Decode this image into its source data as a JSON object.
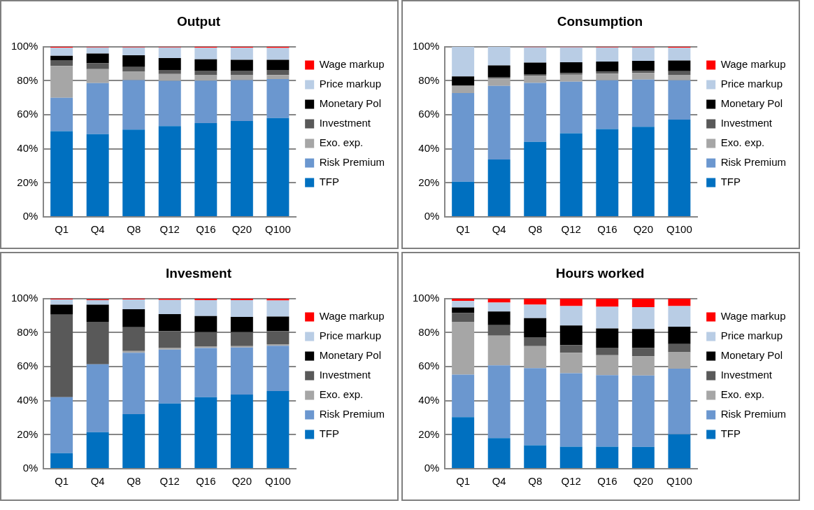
{
  "chart_data": [
    {
      "type": "bar",
      "title": "Output",
      "categories": [
        "Q1",
        "Q4",
        "Q8",
        "Q12",
        "Q16",
        "Q20",
        "Q100"
      ],
      "stacked": true,
      "ylim": [
        0,
        100
      ],
      "yticks": [
        {
          "value": 0,
          "label": "0%"
        },
        {
          "value": 20,
          "label": "20%"
        },
        {
          "value": 40,
          "label": "40%"
        },
        {
          "value": 60,
          "label": "60%"
        },
        {
          "value": 80,
          "label": "80%"
        },
        {
          "value": 100,
          "label": "100%"
        }
      ],
      "grid": "y",
      "legend": "right",
      "series": [
        {
          "name": "TFP",
          "color": "#0070c0",
          "values": [
            50.4,
            48.6,
            51.3,
            53.4,
            55.1,
            56.3,
            58.1
          ]
        },
        {
          "name": "Risk Premium",
          "color": "#6b97cf",
          "values": [
            19.6,
            30,
            29.1,
            26.6,
            25,
            24.1,
            22.9
          ]
        },
        {
          "name": "Exo. exp.",
          "color": "#a6a6a6",
          "values": [
            18.7,
            8.3,
            4.9,
            4,
            3.2,
            2.9,
            2.4
          ]
        },
        {
          "name": "Investment",
          "color": "#595959",
          "values": [
            3.4,
            3.5,
            2.8,
            2.3,
            2.6,
            2.6,
            2.9
          ]
        },
        {
          "name": "Monetary Pol",
          "color": "#000000",
          "values": [
            2.6,
            5.6,
            6.9,
            7,
            6.7,
            6.4,
            6
          ]
        },
        {
          "name": "Price markup",
          "color": "#b9cde5",
          "values": [
            4.7,
            3.6,
            4.6,
            6.3,
            6.8,
            7.1,
            7
          ]
        },
        {
          "name": "Wage markup",
          "color": "#ff0000",
          "values": [
            0.6,
            0.4,
            0.4,
            0.4,
            0.6,
            0.6,
            0.7
          ]
        }
      ]
    },
    {
      "type": "bar",
      "title": "Consumption",
      "categories": [
        "Q1",
        "Q4",
        "Q8",
        "Q12",
        "Q16",
        "Q20",
        "Q100"
      ],
      "stacked": true,
      "ylim": [
        0,
        100
      ],
      "yticks": [
        {
          "value": 0,
          "label": "0%"
        },
        {
          "value": 20,
          "label": "20%"
        },
        {
          "value": 40,
          "label": "40%"
        },
        {
          "value": 60,
          "label": "60%"
        },
        {
          "value": 80,
          "label": "80%"
        },
        {
          "value": 100,
          "label": "100%"
        }
      ],
      "grid": "y",
      "legend": "right",
      "series": [
        {
          "name": "TFP",
          "color": "#0070c0",
          "values": [
            20.7,
            33.7,
            44.1,
            49.1,
            51.6,
            52.9,
            57.2
          ]
        },
        {
          "name": "Risk Premium",
          "color": "#6b97cf",
          "values": [
            52.1,
            43.3,
            34.6,
            30.4,
            28.7,
            27.8,
            23.1
          ]
        },
        {
          "name": "Exo. exp.",
          "color": "#a6a6a6",
          "values": [
            4.2,
            4.3,
            4.2,
            4.1,
            3.9,
            3.9,
            3.2
          ]
        },
        {
          "name": "Investment",
          "color": "#595959",
          "values": [
            0.3,
            0.9,
            1,
            1,
            1.1,
            1.1,
            2.1
          ]
        },
        {
          "name": "Monetary Pol",
          "color": "#000000",
          "values": [
            5.2,
            6.8,
            6.8,
            6.3,
            6,
            6,
            6.3
          ]
        },
        {
          "name": "Price markup",
          "color": "#b9cde5",
          "values": [
            17.4,
            10.9,
            9,
            8.8,
            8.3,
            7.9,
            7.5
          ]
        },
        {
          "name": "Wage markup",
          "color": "#ff0000",
          "values": [
            null,
            null,
            0.3,
            0.3,
            0.4,
            0.4,
            0.6
          ]
        }
      ]
    },
    {
      "type": "bar",
      "title": "Invesment",
      "categories": [
        "Q1",
        "Q4",
        "Q8",
        "Q12",
        "Q16",
        "Q20",
        "Q100"
      ],
      "stacked": true,
      "ylim": [
        0,
        100
      ],
      "yticks": [
        {
          "value": 0,
          "label": "0%"
        },
        {
          "value": 20,
          "label": "20%"
        },
        {
          "value": 40,
          "label": "40%"
        },
        {
          "value": 60,
          "label": "60%"
        },
        {
          "value": 80,
          "label": "80%"
        },
        {
          "value": 100,
          "label": "100%"
        }
      ],
      "grid": "y",
      "legend": "right",
      "series": [
        {
          "name": "TFP",
          "color": "#0070c0",
          "values": [
            9.1,
            21.5,
            32.1,
            38.3,
            42,
            43.6,
            45.6
          ]
        },
        {
          "name": "Risk Premium",
          "color": "#6b97cf",
          "values": [
            32.9,
            39.9,
            36.1,
            31.7,
            28.9,
            27.6,
            26.7
          ]
        },
        {
          "name": "Exo. exp.",
          "color": "#a6a6a6",
          "values": [
            0,
            null,
            1,
            0.9,
            1.1,
            0.9,
            0.9
          ]
        },
        {
          "name": "Investment",
          "color": "#595959",
          "values": [
            48.6,
            25,
            14,
            10,
            8.3,
            8.2,
            7.7
          ]
        },
        {
          "name": "Monetary Pol",
          "color": "#000000",
          "values": [
            5.8,
            10,
            10.6,
            10,
            9.4,
            8.9,
            8.5
          ]
        },
        {
          "name": "Price markup",
          "color": "#b9cde5",
          "values": [
            3.1,
            2.7,
            5.7,
            8.3,
            9.4,
            9.9,
            9.5
          ]
        },
        {
          "name": "Wage markup",
          "color": "#ff0000",
          "values": [
            0.5,
            0.5,
            0.5,
            0.8,
            0.9,
            0.9,
            1.1
          ]
        }
      ]
    },
    {
      "type": "bar",
      "title": "Hours worked",
      "categories": [
        "Q1",
        "Q4",
        "Q8",
        "Q12",
        "Q16",
        "Q20",
        "Q100"
      ],
      "stacked": true,
      "ylim": [
        0,
        100
      ],
      "yticks": [
        {
          "value": 0,
          "label": "0%"
        },
        {
          "value": 20,
          "label": "20%"
        },
        {
          "value": 40,
          "label": "40%"
        },
        {
          "value": 60,
          "label": "60%"
        },
        {
          "value": 80,
          "label": "80%"
        },
        {
          "value": 100,
          "label": "100%"
        }
      ],
      "grid": "y",
      "legend": "right",
      "series": [
        {
          "name": "TFP",
          "color": "#0070c0",
          "values": [
            30.3,
            18,
            13.8,
            13,
            13,
            12.9,
            20.2
          ]
        },
        {
          "name": "Risk Premium",
          "color": "#6b97cf",
          "values": [
            25,
            42.8,
            45.3,
            43.1,
            42,
            41.9,
            38.6
          ]
        },
        {
          "name": "Exo. exp.",
          "color": "#a6a6a6",
          "values": [
            30.8,
            17.4,
            13,
            12.1,
            11.7,
            11.3,
            9.7
          ]
        },
        {
          "name": "Investment",
          "color": "#595959",
          "values": [
            5.4,
            6.2,
            5.2,
            4.5,
            4.4,
            4.8,
            4.8
          ]
        },
        {
          "name": "Monetary Pol",
          "color": "#000000",
          "values": [
            3.3,
            8,
            11.2,
            11.5,
            11.3,
            11.2,
            10.2
          ]
        },
        {
          "name": "Price markup",
          "color": "#b9cde5",
          "values": [
            3.8,
            5.3,
            7.9,
            11.4,
            12.8,
            12.9,
            12.1
          ]
        },
        {
          "name": "Wage markup",
          "color": "#ff0000",
          "values": [
            1.4,
            2.3,
            3.6,
            4.4,
            4.8,
            5,
            4.4
          ]
        }
      ]
    }
  ]
}
